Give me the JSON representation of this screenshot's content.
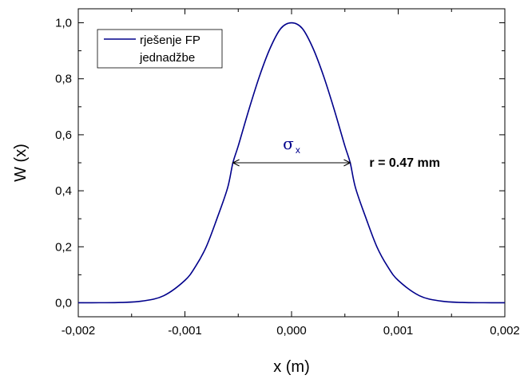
{
  "chart_data": {
    "type": "line",
    "xlabel": "x (m)",
    "ylabel": "W (x)",
    "xlim": [
      -0.002,
      0.002
    ],
    "ylim": [
      -0.05,
      1.05
    ],
    "x_ticks": [
      -0.002,
      -0.001,
      0.0,
      0.001,
      0.002
    ],
    "x_tick_labels": [
      "-0,002",
      "-0,001",
      "0,000",
      "0,001",
      "0,002"
    ],
    "y_ticks": [
      0.0,
      0.2,
      0.4,
      0.6,
      0.8,
      1.0
    ],
    "y_tick_labels": [
      "0,0",
      "0,2",
      "0,4",
      "0,6",
      "0,8",
      "1,0"
    ],
    "legend": {
      "line1": "rješenje FP",
      "line2": "jednadžbe",
      "position": "top-left"
    },
    "series": [
      {
        "name": "rješenje FP jednadžbe",
        "color": "#00008b",
        "x": [
          -0.002,
          -0.0018,
          -0.0016,
          -0.0014,
          -0.0012,
          -0.001,
          -0.0009,
          -0.0008,
          -0.0007,
          -0.0006,
          -0.00055,
          -0.0005,
          -0.0004,
          -0.0003,
          -0.0002,
          -0.0001,
          0.0,
          0.0001,
          0.0002,
          0.0003,
          0.0004,
          0.0005,
          0.00055,
          0.0006,
          0.0007,
          0.0008,
          0.0009,
          0.001,
          0.0012,
          0.0014,
          0.0016,
          0.0018,
          0.002
        ],
        "y": [
          0.0,
          0.0002,
          0.001,
          0.006,
          0.025,
          0.08,
          0.13,
          0.2,
          0.3,
          0.41,
          0.5,
          0.56,
          0.69,
          0.81,
          0.91,
          0.98,
          1.0,
          0.98,
          0.91,
          0.81,
          0.69,
          0.56,
          0.5,
          0.41,
          0.3,
          0.2,
          0.13,
          0.08,
          0.025,
          0.006,
          0.001,
          0.0002,
          0.0
        ]
      }
    ],
    "annotations": {
      "sigma_symbol": "σ",
      "sigma_subscript": "x",
      "sigma_color": "#00008b",
      "arrow_x_start": -0.00055,
      "arrow_x_end": 0.00055,
      "arrow_y": 0.5,
      "radius_label": "r = 0.47 mm"
    },
    "grid": false
  }
}
